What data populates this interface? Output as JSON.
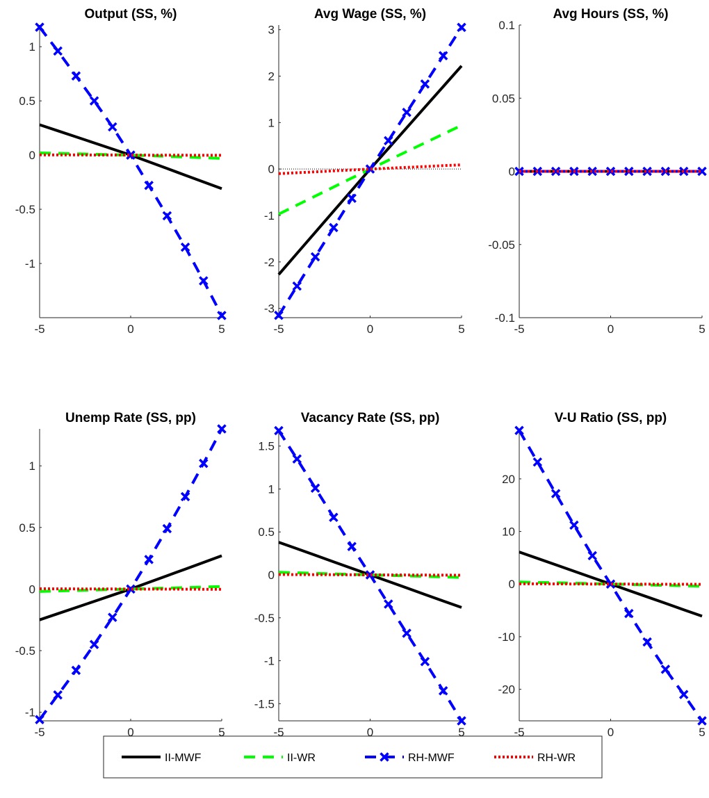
{
  "chart_data": [
    {
      "type": "line",
      "title": "Output (SS, %)",
      "x": [
        -5,
        -4,
        -3,
        -2,
        -1,
        0,
        1,
        2,
        3,
        4,
        5
      ],
      "xlim": [
        -5,
        5
      ],
      "ylim": [
        -1.5,
        1.2
      ],
      "xticks": [
        "-5",
        "0",
        "5"
      ],
      "yticks": [
        {
          "v": 1,
          "t": "1"
        },
        {
          "v": 0.5,
          "t": "0.5"
        },
        {
          "v": 0,
          "t": "0"
        },
        {
          "v": -0.5,
          "t": "-0.5"
        },
        {
          "v": -1,
          "t": "-1"
        }
      ],
      "series": [
        {
          "name": "II-MWF",
          "values": [
            0.28,
            0.224,
            0.168,
            0.112,
            0.056,
            0,
            -0.062,
            -0.124,
            -0.186,
            -0.248,
            -0.31
          ]
        },
        {
          "name": "II-WR",
          "values": [
            0.02,
            0.016,
            0.012,
            0.008,
            0.004,
            0,
            -0.006,
            -0.012,
            -0.018,
            -0.024,
            -0.03
          ]
        },
        {
          "name": "RH-MWF",
          "values": [
            1.18,
            0.96,
            0.73,
            0.5,
            0.26,
            0,
            -0.28,
            -0.56,
            -0.85,
            -1.16,
            -1.48
          ]
        },
        {
          "name": "RH-WR",
          "values": [
            0.002,
            0.0016,
            0.0012,
            0.0008,
            0.0004,
            0,
            -0.0004,
            -0.0008,
            -0.0012,
            -0.0016,
            -0.002
          ]
        }
      ]
    },
    {
      "type": "line",
      "title": "Avg Wage (SS, %)",
      "x": [
        -5,
        -4,
        -3,
        -2,
        -1,
        0,
        1,
        2,
        3,
        4,
        5
      ],
      "xlim": [
        -5,
        5
      ],
      "ylim": [
        -3.2,
        3.1
      ],
      "xticks": [
        "-5",
        "0",
        "5"
      ],
      "yticks": [
        {
          "v": 3,
          "t": "3"
        },
        {
          "v": 2,
          "t": "2"
        },
        {
          "v": 1,
          "t": "1"
        },
        {
          "v": 0,
          "t": "0"
        },
        {
          "v": -1,
          "t": "-1"
        },
        {
          "v": -2,
          "t": "-2"
        },
        {
          "v": -3,
          "t": "-3"
        }
      ],
      "zero_line": true,
      "series": [
        {
          "name": "II-MWF",
          "values": [
            -2.27,
            -1.816,
            -1.362,
            -0.908,
            -0.454,
            0,
            0.444,
            0.888,
            1.332,
            1.776,
            2.22
          ]
        },
        {
          "name": "II-WR",
          "values": [
            -0.97,
            -0.776,
            -0.582,
            -0.388,
            -0.194,
            0,
            0.188,
            0.376,
            0.564,
            0.752,
            0.94
          ]
        },
        {
          "name": "RH-MWF",
          "values": [
            -3.15,
            -2.52,
            -1.89,
            -1.26,
            -0.63,
            0,
            0.61,
            1.22,
            1.83,
            2.44,
            3.05
          ]
        },
        {
          "name": "RH-WR",
          "values": [
            -0.1,
            -0.08,
            -0.06,
            -0.04,
            -0.02,
            0,
            0.018,
            0.036,
            0.054,
            0.072,
            0.09
          ]
        }
      ]
    },
    {
      "type": "line",
      "title": "Avg Hours (SS, %)",
      "x": [
        -5,
        -4,
        -3,
        -2,
        -1,
        0,
        1,
        2,
        3,
        4,
        5
      ],
      "xlim": [
        -5,
        5
      ],
      "ylim": [
        -0.1,
        0.1
      ],
      "xticks": [
        "-5",
        "0",
        "5"
      ],
      "yticks": [
        {
          "v": 0.1,
          "t": "0.1"
        },
        {
          "v": 0.05,
          "t": "0.05"
        },
        {
          "v": 0,
          "t": "0"
        },
        {
          "v": -0.05,
          "t": "-0.05"
        },
        {
          "v": -0.1,
          "t": "-0.1"
        }
      ],
      "series": [
        {
          "name": "II-MWF",
          "values": [
            0,
            0,
            0,
            0,
            0,
            0,
            0,
            0,
            0,
            0,
            0
          ]
        },
        {
          "name": "II-WR",
          "values": [
            0,
            0,
            0,
            0,
            0,
            0,
            0,
            0,
            0,
            0,
            0
          ]
        },
        {
          "name": "RH-MWF",
          "values": [
            0,
            0,
            0,
            0,
            0,
            0,
            0,
            0,
            0,
            0,
            0
          ]
        },
        {
          "name": "RH-WR",
          "values": [
            0,
            0,
            0,
            0,
            0,
            0,
            0,
            0,
            0,
            0,
            0
          ]
        }
      ]
    },
    {
      "type": "line",
      "title": "Unemp Rate (SS, pp)",
      "x": [
        -5,
        -4,
        -3,
        -2,
        -1,
        0,
        1,
        2,
        3,
        4,
        5
      ],
      "xlim": [
        -5,
        5
      ],
      "ylim": [
        -1.07,
        1.3
      ],
      "xticks": [
        "-5",
        "0",
        "5"
      ],
      "yticks": [
        {
          "v": 1,
          "t": "1"
        },
        {
          "v": 0.5,
          "t": "0.5"
        },
        {
          "v": 0,
          "t": "0"
        },
        {
          "v": -0.5,
          "t": "-0.5"
        },
        {
          "v": -1,
          "t": "-1"
        }
      ],
      "series": [
        {
          "name": "II-MWF",
          "values": [
            -0.25,
            -0.2,
            -0.15,
            -0.1,
            -0.05,
            0,
            0.054,
            0.108,
            0.162,
            0.216,
            0.27
          ]
        },
        {
          "name": "II-WR",
          "values": [
            -0.02,
            -0.016,
            -0.012,
            -0.008,
            -0.004,
            0,
            0.004,
            0.008,
            0.012,
            0.016,
            0.02
          ]
        },
        {
          "name": "RH-MWF",
          "values": [
            -1.06,
            -0.86,
            -0.66,
            -0.45,
            -0.23,
            0,
            0.24,
            0.49,
            0.75,
            1.02,
            1.3
          ]
        },
        {
          "name": "RH-WR",
          "values": [
            0.002,
            0.0016,
            0.0012,
            0.0008,
            0.0004,
            0,
            -0.0004,
            -0.0008,
            -0.0012,
            -0.0016,
            -0.002
          ]
        }
      ]
    },
    {
      "type": "line",
      "title": "Vacancy Rate (SS, pp)",
      "x": [
        -5,
        -4,
        -3,
        -2,
        -1,
        0,
        1,
        2,
        3,
        4,
        5
      ],
      "xlim": [
        -5,
        5
      ],
      "ylim": [
        -1.7,
        1.7
      ],
      "xticks": [
        "-5",
        "0",
        "5"
      ],
      "yticks": [
        {
          "v": 1.5,
          "t": "1.5"
        },
        {
          "v": 1,
          "t": "1"
        },
        {
          "v": 0.5,
          "t": "0.5"
        },
        {
          "v": 0,
          "t": "0"
        },
        {
          "v": -0.5,
          "t": "-0.5"
        },
        {
          "v": -1,
          "t": "-1"
        },
        {
          "v": -1.5,
          "t": "-1.5"
        }
      ],
      "series": [
        {
          "name": "II-MWF",
          "values": [
            0.38,
            0.304,
            0.228,
            0.152,
            0.076,
            0,
            -0.076,
            -0.152,
            -0.228,
            -0.304,
            -0.38
          ]
        },
        {
          "name": "II-WR",
          "values": [
            0.03,
            0.024,
            0.018,
            0.012,
            0.006,
            0,
            -0.006,
            -0.012,
            -0.018,
            -0.024,
            -0.03
          ]
        },
        {
          "name": "RH-MWF",
          "values": [
            1.68,
            1.35,
            1.01,
            0.67,
            0.33,
            0,
            -0.34,
            -0.68,
            -1.01,
            -1.35,
            -1.7
          ]
        },
        {
          "name": "RH-WR",
          "values": [
            0.004,
            0.0032,
            0.0024,
            0.0016,
            0.0008,
            0,
            -0.0008,
            -0.0016,
            -0.0024,
            -0.0032,
            -0.004
          ]
        }
      ]
    },
    {
      "type": "line",
      "title": "V-U Ratio (SS, pp)",
      "x": [
        -5,
        -4,
        -3,
        -2,
        -1,
        0,
        1,
        2,
        3,
        4,
        5
      ],
      "xlim": [
        -5,
        5
      ],
      "ylim": [
        -26,
        29.5
      ],
      "xticks": [
        "-5",
        "0",
        "5"
      ],
      "yticks": [
        {
          "v": 20,
          "t": "20"
        },
        {
          "v": 10,
          "t": "10"
        },
        {
          "v": 0,
          "t": "0"
        },
        {
          "v": -10,
          "t": "-10"
        },
        {
          "v": -20,
          "t": "-20"
        }
      ],
      "series": [
        {
          "name": "II-MWF",
          "values": [
            6.1,
            4.88,
            3.66,
            2.44,
            1.22,
            0,
            -1.22,
            -2.44,
            -3.66,
            -4.88,
            -6.1
          ]
        },
        {
          "name": "II-WR",
          "values": [
            0.4,
            0.32,
            0.24,
            0.16,
            0.08,
            0,
            -0.08,
            -0.16,
            -0.24,
            -0.32,
            -0.4
          ]
        },
        {
          "name": "RH-MWF",
          "values": [
            29.2,
            23.2,
            17.2,
            11.2,
            5.4,
            0,
            -5.6,
            -11,
            -16.2,
            -21,
            -26
          ]
        },
        {
          "name": "RH-WR",
          "values": [
            0.05,
            0.04,
            0.03,
            0.02,
            0.01,
            0,
            -0.01,
            -0.02,
            -0.03,
            -0.04,
            -0.05
          ]
        }
      ]
    }
  ],
  "legend": {
    "placement": "bottom-center",
    "entries": [
      {
        "label": "II-MWF",
        "color": "#000000",
        "style": "solid",
        "marker": "none"
      },
      {
        "label": "II-WR",
        "color": "#00ff00",
        "style": "dashed",
        "marker": "none"
      },
      {
        "label": "RH-MWF",
        "color": "#0000ff",
        "style": "dashed",
        "marker": "x"
      },
      {
        "label": "RH-WR",
        "color": "#ff0000",
        "style": "dotted",
        "marker": "none"
      }
    ]
  }
}
